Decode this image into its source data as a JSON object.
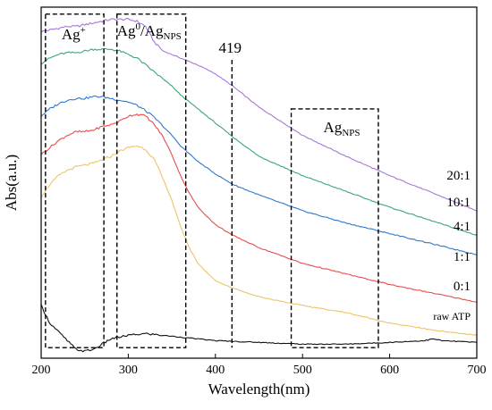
{
  "chart_data": {
    "type": "line",
    "xlabel": "Wavelength(nm)",
    "ylabel": "Abs(a.u.)",
    "xlim": [
      200,
      700
    ],
    "ylim": [
      0,
      1
    ],
    "xticks": [
      "200",
      "300",
      "400",
      "500",
      "600",
      "700"
    ],
    "grid": false,
    "legend": "labels-at-right-end",
    "annotations": [
      {
        "text": "Ag",
        "sup": "+",
        "x0": 205,
        "x1": 272,
        "y0": 0.03,
        "y1": 0.98
      },
      {
        "text": "Ag",
        "sup": "0",
        "mid": "/Ag",
        "sub": "NPS",
        "x0": 287,
        "x1": 366,
        "y0": 0.03,
        "y1": 0.98
      },
      {
        "text": "Ag",
        "sub": "NPS",
        "x0": 487,
        "x1": 587,
        "y0": 0.03,
        "y1": 0.71
      }
    ],
    "marker_line": {
      "label": "419",
      "x": 419,
      "y0": 0.03,
      "y1": 0.85
    },
    "series": [
      {
        "name": "20:1",
        "color": "#a877d9",
        "x": [
          200,
          210,
          220,
          230,
          240,
          250,
          260,
          270,
          280,
          290,
          300,
          310,
          320,
          330,
          340,
          350,
          360,
          380,
          400,
          420,
          450,
          500,
          550,
          600,
          650,
          700
        ],
        "y": [
          0.93,
          0.935,
          0.94,
          0.945,
          0.945,
          0.95,
          0.955,
          0.96,
          0.965,
          0.965,
          0.965,
          0.96,
          0.945,
          0.9,
          0.875,
          0.865,
          0.855,
          0.835,
          0.81,
          0.775,
          0.715,
          0.635,
          0.575,
          0.52,
          0.47,
          0.42
        ]
      },
      {
        "name": "10:1",
        "color": "#3ea676",
        "x": [
          200,
          210,
          220,
          230,
          240,
          250,
          260,
          270,
          280,
          290,
          300,
          310,
          320,
          330,
          340,
          350,
          360,
          380,
          400,
          420,
          450,
          500,
          550,
          600,
          650,
          700
        ],
        "y": [
          0.84,
          0.855,
          0.865,
          0.87,
          0.87,
          0.875,
          0.88,
          0.88,
          0.88,
          0.875,
          0.865,
          0.855,
          0.835,
          0.815,
          0.795,
          0.775,
          0.75,
          0.71,
          0.67,
          0.63,
          0.575,
          0.52,
          0.475,
          0.43,
          0.39,
          0.35
        ]
      },
      {
        "name": "4:1",
        "color": "#2e78d2",
        "x": [
          200,
          210,
          220,
          230,
          240,
          250,
          260,
          270,
          280,
          290,
          300,
          310,
          320,
          330,
          340,
          350,
          360,
          380,
          400,
          420,
          450,
          500,
          550,
          600,
          650,
          700
        ],
        "y": [
          0.69,
          0.71,
          0.725,
          0.735,
          0.74,
          0.74,
          0.745,
          0.745,
          0.74,
          0.735,
          0.73,
          0.72,
          0.705,
          0.685,
          0.66,
          0.635,
          0.605,
          0.56,
          0.525,
          0.495,
          0.465,
          0.42,
          0.385,
          0.355,
          0.325,
          0.295
        ]
      },
      {
        "name": "1:1",
        "color": "#e84c4c",
        "x": [
          200,
          210,
          220,
          230,
          240,
          250,
          260,
          270,
          280,
          290,
          300,
          310,
          320,
          330,
          340,
          350,
          360,
          370,
          380,
          400,
          420,
          450,
          500,
          550,
          600,
          650,
          700
        ],
        "y": [
          0.58,
          0.6,
          0.62,
          0.635,
          0.645,
          0.645,
          0.65,
          0.66,
          0.665,
          0.675,
          0.69,
          0.695,
          0.69,
          0.665,
          0.63,
          0.58,
          0.52,
          0.47,
          0.43,
          0.38,
          0.35,
          0.315,
          0.27,
          0.24,
          0.21,
          0.185,
          0.16
        ]
      },
      {
        "name": "0:1",
        "color": "#edc46a",
        "x": [
          200,
          210,
          220,
          230,
          240,
          250,
          260,
          270,
          280,
          290,
          300,
          310,
          320,
          330,
          340,
          350,
          360,
          370,
          380,
          400,
          420,
          450,
          500,
          550,
          600,
          650,
          700
        ],
        "y": [
          0.46,
          0.495,
          0.52,
          0.535,
          0.545,
          0.55,
          0.555,
          0.565,
          0.575,
          0.59,
          0.6,
          0.605,
          0.595,
          0.565,
          0.51,
          0.45,
          0.375,
          0.315,
          0.27,
          0.22,
          0.2,
          0.175,
          0.15,
          0.13,
          0.1,
          0.08,
          0.065
        ]
      },
      {
        "name": "raw ATP",
        "color": "#111111",
        "x": [
          200,
          205,
          210,
          220,
          230,
          240,
          250,
          260,
          270,
          280,
          290,
          300,
          320,
          340,
          360,
          380,
          400,
          450,
          500,
          550,
          600,
          640,
          650,
          660,
          700
        ],
        "y": [
          0.15,
          0.125,
          0.1,
          0.075,
          0.05,
          0.025,
          0.02,
          0.025,
          0.04,
          0.055,
          0.06,
          0.065,
          0.07,
          0.065,
          0.06,
          0.055,
          0.05,
          0.045,
          0.04,
          0.04,
          0.045,
          0.05,
          0.055,
          0.05,
          0.045
        ]
      }
    ]
  }
}
